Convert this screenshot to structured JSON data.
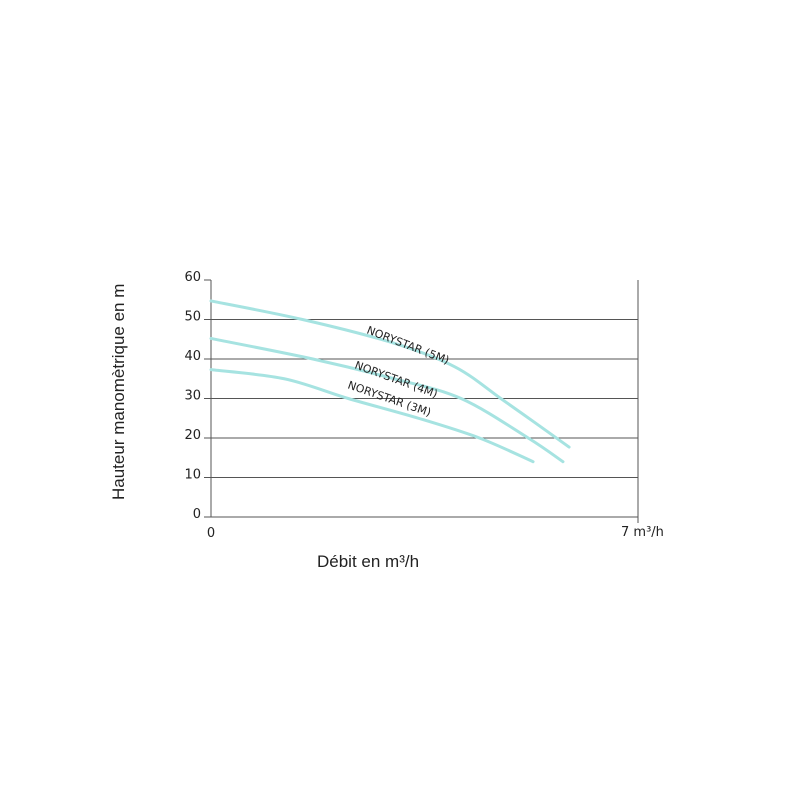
{
  "chart_data": {
    "type": "line",
    "title": "",
    "xlabel": "Débit en m³/h",
    "ylabel": "Hauteur manomètrique en m",
    "xlim": [
      0,
      7
    ],
    "ylim": [
      0,
      60
    ],
    "x_tick_labels": [
      "0",
      "7 m³/h"
    ],
    "y_tick_labels": [
      "0",
      "10",
      "20",
      "30",
      "40",
      "50",
      "60"
    ],
    "y_ticks": [
      0,
      10,
      20,
      30,
      40,
      50,
      60
    ],
    "grid": "horizontal",
    "line_color": "#a6e3e1",
    "series": [
      {
        "name": "NORYSTAR (5M)",
        "x": [
          0,
          1.5,
          3.0,
          4.0,
          4.75,
          5.3,
          5.87
        ],
        "y": [
          54.7,
          50,
          44,
          38,
          30,
          24,
          17.7
        ]
      },
      {
        "name": "NORYSTAR (4M)",
        "x": [
          0,
          1.67,
          3.0,
          4.1,
          5.2,
          5.77
        ],
        "y": [
          45.2,
          40,
          35,
          30,
          20,
          14
        ]
      },
      {
        "name": "NORYSTAR (3M)",
        "x": [
          0,
          1.2,
          2.25,
          3.4,
          4.4,
          5.28
        ],
        "y": [
          37.3,
          35,
          30,
          25,
          20,
          14
        ]
      }
    ]
  }
}
